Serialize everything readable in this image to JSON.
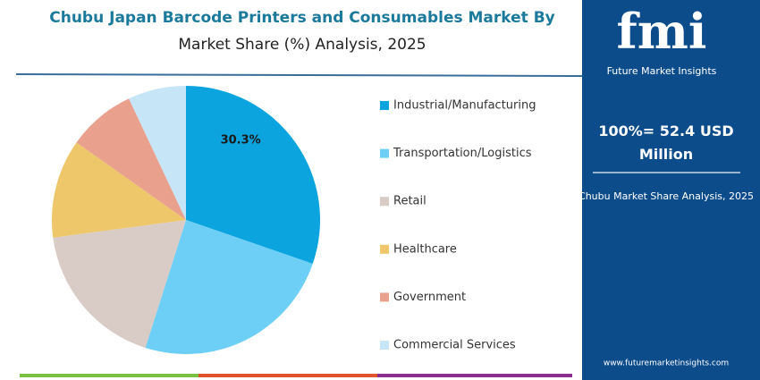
{
  "chart_data": {
    "type": "pie",
    "title": "Chubu Japan Barcode Printers and Consumables Market By",
    "subtitle": "Market Share (%) Analysis, 2025",
    "categories": [
      "Industrial/Manufacturing",
      "Transportation/Logistics",
      "Retail",
      "Healthcare",
      "Government",
      "Commercial Services"
    ],
    "values": [
      30.3,
      24.6,
      18.0,
      11.9,
      8.2,
      7.0
    ],
    "value_labels": [
      "30.3%",
      null,
      null,
      null,
      null,
      null
    ],
    "colors": [
      "#0ba4df",
      "#6dcff6",
      "#d9ccc6",
      "#eec76a",
      "#e9a18d",
      "#c6e5f6"
    ]
  },
  "sidebar": {
    "logo": "fmi",
    "brand": "Future Market Insights",
    "total": "100%= 52.4 USD Million",
    "caption": "Chubu Market Share Analysis, 2025",
    "website": "www.futuremarketinsights.com"
  }
}
